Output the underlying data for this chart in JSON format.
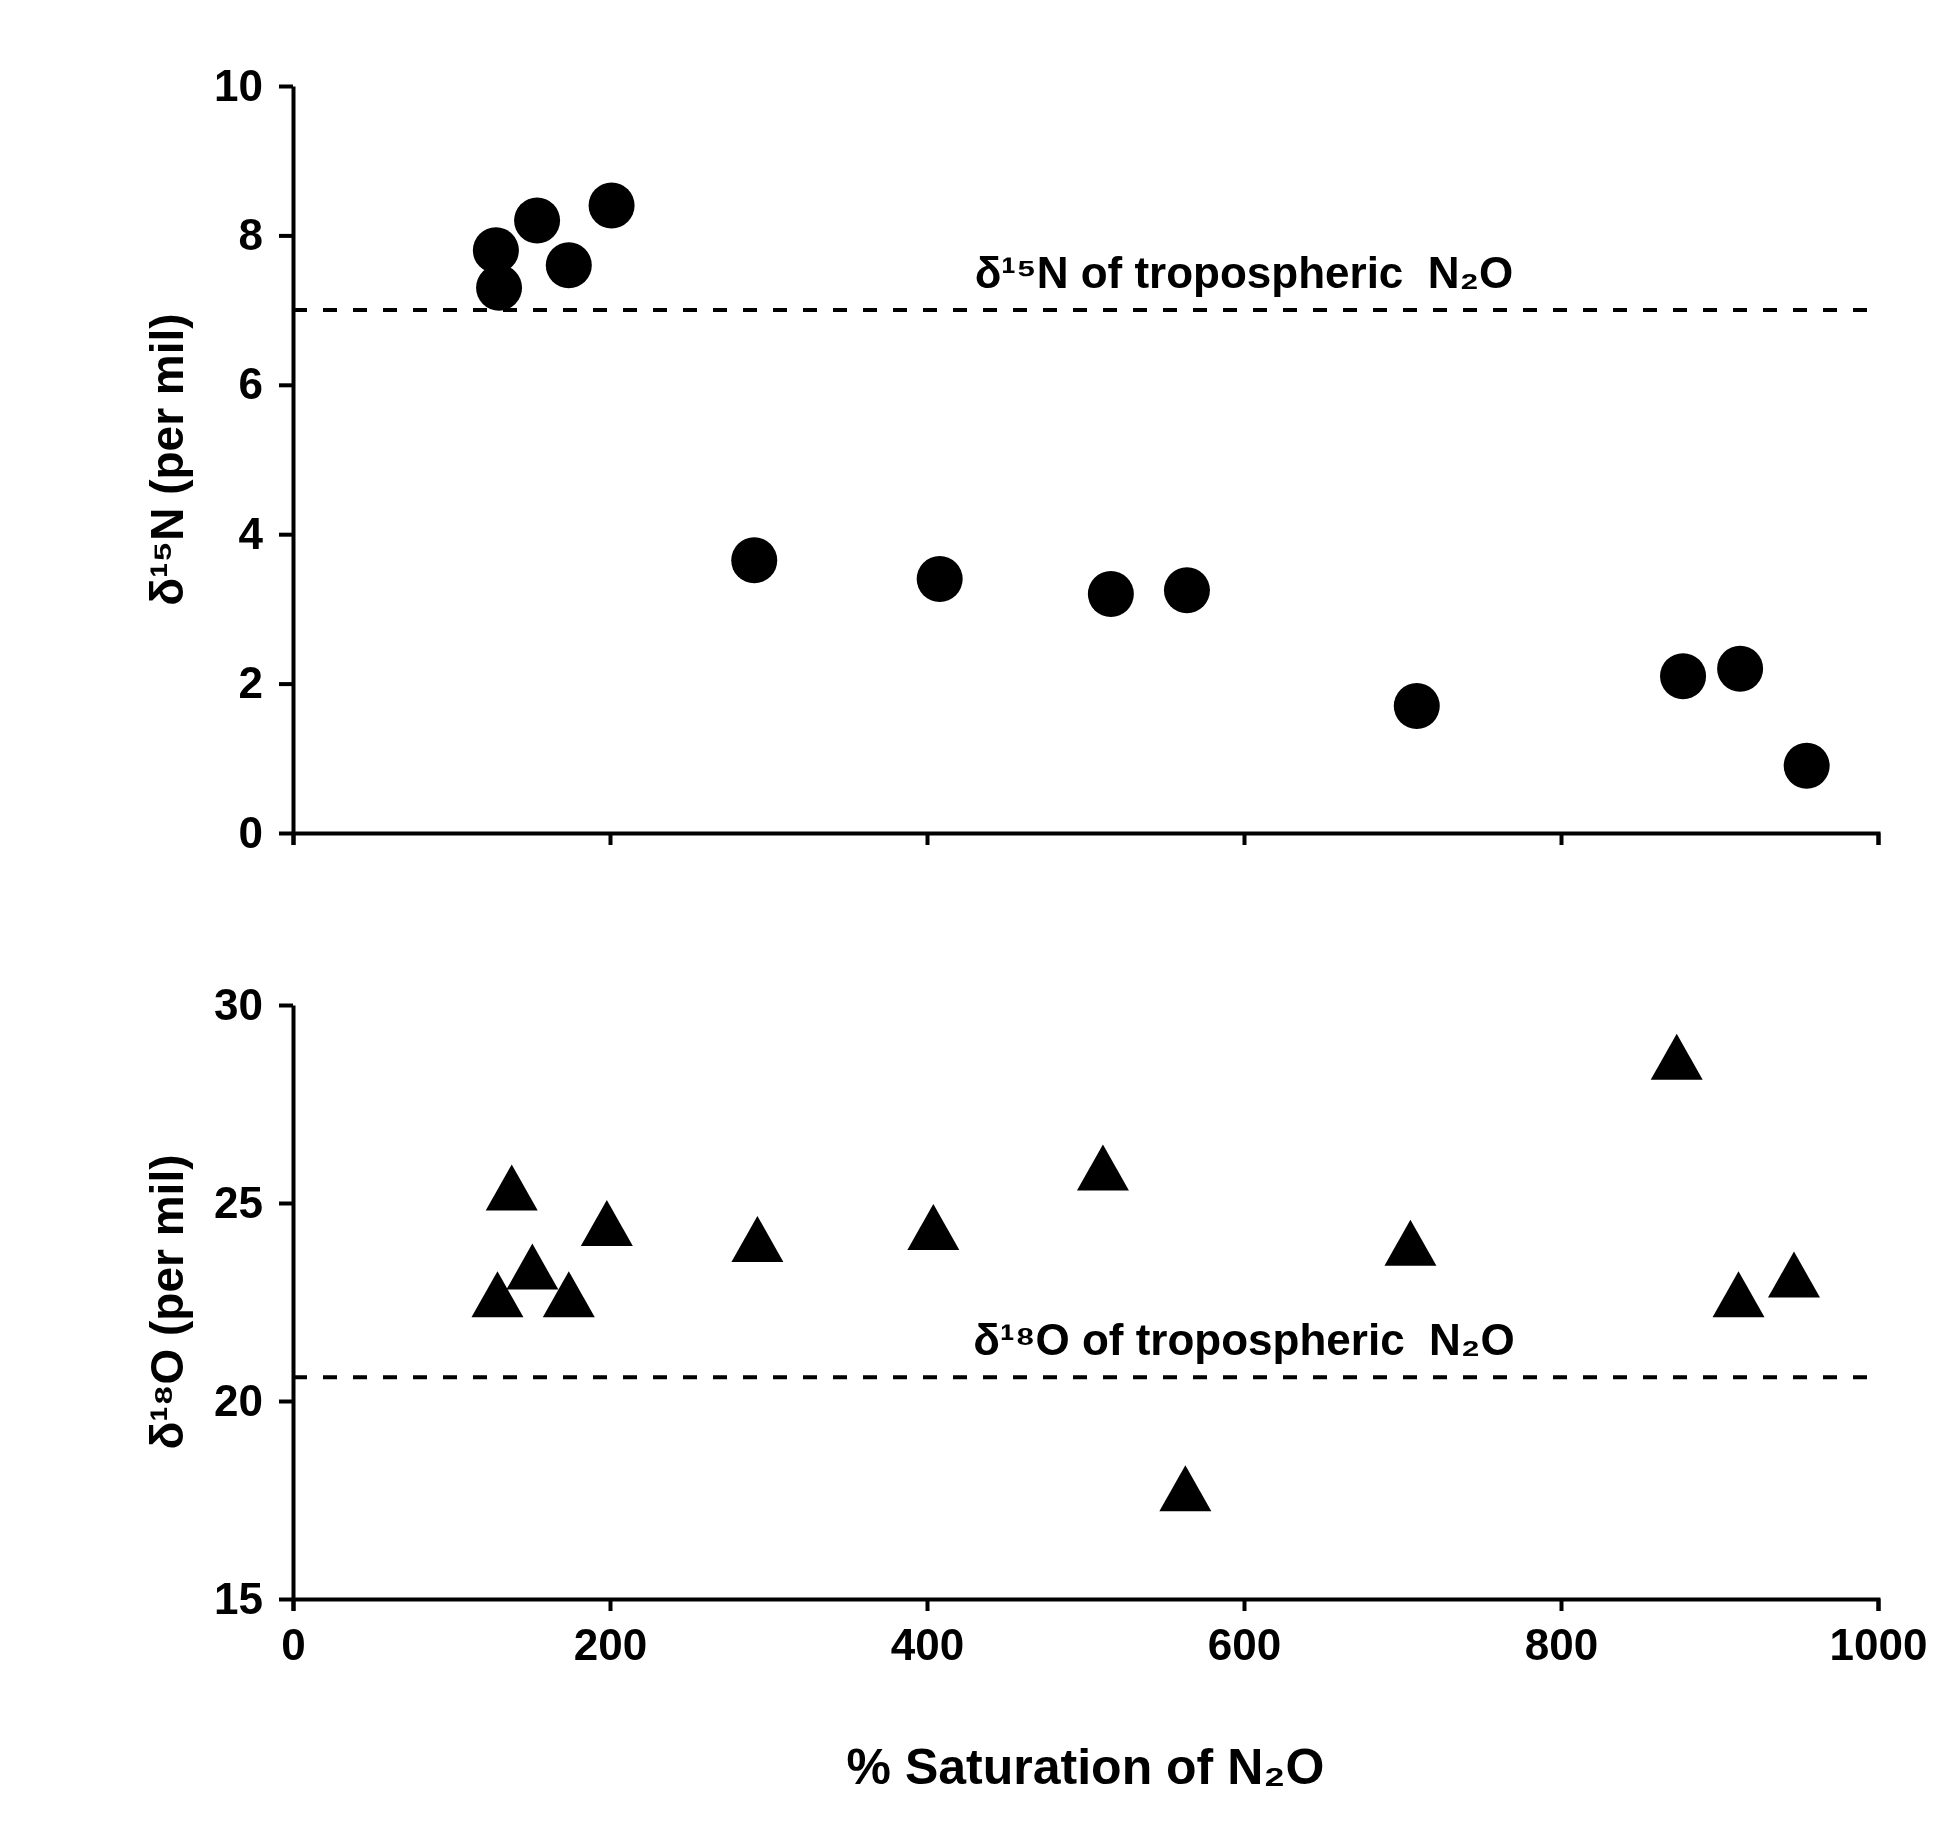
{
  "chart_data": [
    {
      "type": "scatter",
      "ylabel": "δ¹⁵N (per mil)",
      "xlim": [
        0,
        1000
      ],
      "xticks": [
        0,
        200,
        400,
        600,
        800,
        1000
      ],
      "ylim": [
        0,
        10
      ],
      "yticks": [
        0,
        2,
        4,
        6,
        8,
        10
      ],
      "tick_labels": "y",
      "marker": "circle",
      "grid": false,
      "x": [
        128,
        154,
        174,
        130,
        201,
        291,
        408,
        516,
        564,
        709,
        877,
        913,
        955
      ],
      "series": [
        {
          "color": "#000000",
          "values": [
            7.8,
            8.2,
            7.6,
            7.3,
            8.4,
            3.65,
            3.4,
            3.2,
            3.25,
            1.7,
            2.1,
            2.2,
            0.9
          ]
        }
      ],
      "ref_lines": [
        {
          "axis": "y",
          "value": 7,
          "label": "δ¹⁵N of tropospheric  N₂O",
          "line_style": "dashed"
        }
      ]
    },
    {
      "type": "scatter",
      "xlabel": "% Saturation of N₂O",
      "ylabel": "δ¹⁸O (per mil)",
      "xlim": [
        0,
        1000
      ],
      "xticks": [
        0,
        200,
        400,
        600,
        800,
        1000
      ],
      "ylim": [
        15,
        30
      ],
      "yticks": [
        15,
        20,
        25,
        30
      ],
      "marker": "triangle",
      "grid": false,
      "x": [
        138,
        129,
        151,
        174,
        198,
        293,
        404,
        511,
        563,
        705,
        873,
        912,
        947
      ],
      "series": [
        {
          "color": "#000000",
          "values": [
            25.2,
            22.5,
            23.2,
            22.5,
            24.3,
            23.9,
            24.2,
            25.7,
            17.6,
            23.8,
            28.5,
            22.5,
            23.0
          ]
        }
      ],
      "ref_lines": [
        {
          "axis": "y",
          "value": 20.6,
          "label": "δ¹⁸O of tropospheric  N₂O",
          "line_style": "dashed"
        }
      ]
    }
  ]
}
